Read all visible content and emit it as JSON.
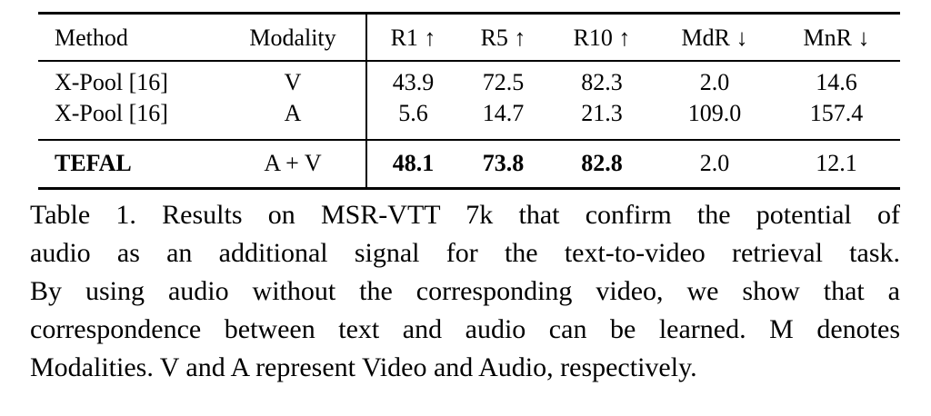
{
  "table": {
    "columns": [
      {
        "key": "method",
        "label": "Method"
      },
      {
        "key": "modality",
        "label": "Modality"
      },
      {
        "key": "r1",
        "label": "R1 ↑"
      },
      {
        "key": "r5",
        "label": "R5 ↑"
      },
      {
        "key": "r10",
        "label": "R10 ↑"
      },
      {
        "key": "mdr",
        "label": "MdR ↓"
      },
      {
        "key": "mnr",
        "label": "MnR ↓"
      }
    ],
    "rows": [
      {
        "cells": [
          "X-Pool [16]",
          "V",
          "43.9",
          "72.5",
          "82.3",
          "2.0",
          "14.6"
        ],
        "bold": [
          false,
          false,
          false,
          false,
          false,
          false,
          false
        ]
      },
      {
        "cells": [
          "X-Pool [16]",
          "A",
          "5.6",
          "14.7",
          "21.3",
          "109.0",
          "157.4"
        ],
        "bold": [
          false,
          false,
          false,
          false,
          false,
          false,
          false
        ]
      },
      {
        "cells": [
          "TEFAL",
          "A + V",
          "48.1",
          "73.8",
          "82.8",
          "2.0",
          "12.1"
        ],
        "bold": [
          true,
          false,
          true,
          true,
          true,
          false,
          false
        ]
      }
    ]
  },
  "caption": {
    "lines": [
      "Table 1. Results on MSR-VTT 7k that confirm the potential of",
      "audio as an additional signal for the text-to-video retrieval task.",
      "By using audio without the corresponding video, we show that a",
      "correspondence between text and audio can be learned. M denotes",
      "Modalities. V and A represent Video and Audio, respectively."
    ]
  },
  "colors": {
    "text": "#000000",
    "background": "#ffffff",
    "rule": "#000000"
  }
}
